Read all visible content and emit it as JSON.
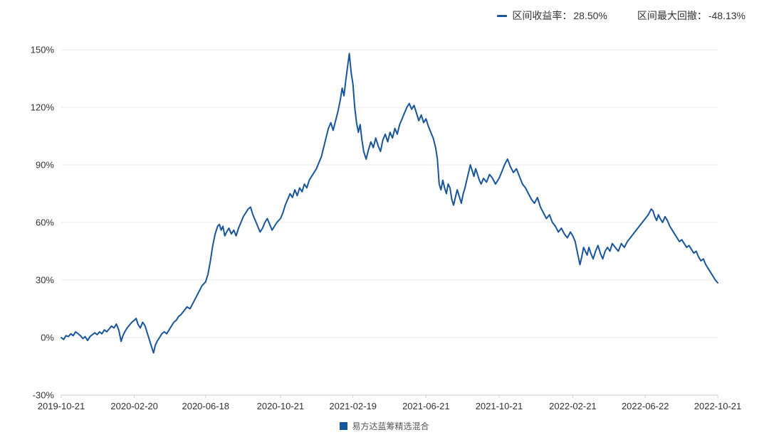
{
  "header": {
    "return_label": "区间收益率：",
    "return_value": "28.50%",
    "drawdown_label": "区间最大回撤：",
    "drawdown_value": "-48.13%"
  },
  "legend": {
    "series_name": "易方达蓝筹精选混合",
    "marker_color": "#17559c"
  },
  "colors": {
    "line": "#17559c",
    "grid": "#e9e9e9",
    "axis": "#cfcfcf",
    "text": "#333333"
  },
  "chart_data": {
    "type": "line",
    "title": "",
    "xlabel": "",
    "ylabel": "",
    "grid": "horizontal",
    "legend_position": "bottom",
    "x_unit": "days since 2019-10-21",
    "x_range": [
      0,
      1096
    ],
    "y_range": [
      -30,
      150
    ],
    "y_ticks": [
      -30,
      0,
      30,
      60,
      90,
      120,
      150
    ],
    "y_tick_labels": [
      "-30%",
      "0%",
      "30%",
      "60%",
      "90%",
      "120%",
      "150%"
    ],
    "x_ticks": [
      {
        "day": 0,
        "label": "2019-10-21"
      },
      {
        "day": 122,
        "label": "2020-02-20"
      },
      {
        "day": 241,
        "label": "2020-06-18"
      },
      {
        "day": 366,
        "label": "2020-10-21"
      },
      {
        "day": 487,
        "label": "2021-02-19"
      },
      {
        "day": 609,
        "label": "2021-06-21"
      },
      {
        "day": 731,
        "label": "2021-10-21"
      },
      {
        "day": 854,
        "label": "2022-02-21"
      },
      {
        "day": 975,
        "label": "2022-06-22"
      },
      {
        "day": 1096,
        "label": "2022-10-21"
      }
    ],
    "series": [
      {
        "name": "易方达蓝筹精选混合",
        "color": "#17559c",
        "points": [
          [
            0,
            0
          ],
          [
            4,
            -1
          ],
          [
            8,
            1
          ],
          [
            12,
            0.5
          ],
          [
            16,
            2
          ],
          [
            20,
            1
          ],
          [
            24,
            3
          ],
          [
            28,
            2
          ],
          [
            32,
            1
          ],
          [
            36,
            -0.5
          ],
          [
            40,
            0.5
          ],
          [
            44,
            -1.5
          ],
          [
            48,
            0.5
          ],
          [
            52,
            1.5
          ],
          [
            56,
            2.5
          ],
          [
            60,
            1.5
          ],
          [
            64,
            3
          ],
          [
            68,
            2
          ],
          [
            72,
            4
          ],
          [
            76,
            3
          ],
          [
            80,
            4.5
          ],
          [
            84,
            6
          ],
          [
            88,
            5
          ],
          [
            92,
            7
          ],
          [
            96,
            4
          ],
          [
            100,
            -2
          ],
          [
            103,
            1
          ],
          [
            106,
            3
          ],
          [
            110,
            5
          ],
          [
            114,
            6.5
          ],
          [
            118,
            8
          ],
          [
            122,
            9
          ],
          [
            125,
            10
          ],
          [
            128,
            7
          ],
          [
            132,
            5
          ],
          [
            136,
            8
          ],
          [
            140,
            6
          ],
          [
            144,
            2
          ],
          [
            148,
            -2
          ],
          [
            151,
            -5
          ],
          [
            154,
            -8
          ],
          [
            157,
            -4
          ],
          [
            160,
            -2
          ],
          [
            164,
            0
          ],
          [
            168,
            2
          ],
          [
            172,
            3
          ],
          [
            176,
            2
          ],
          [
            180,
            4
          ],
          [
            184,
            6
          ],
          [
            188,
            8
          ],
          [
            192,
            9
          ],
          [
            196,
            11
          ],
          [
            200,
            12
          ],
          [
            205,
            14
          ],
          [
            210,
            16
          ],
          [
            215,
            15
          ],
          [
            220,
            18
          ],
          [
            225,
            21
          ],
          [
            230,
            24
          ],
          [
            235,
            27
          ],
          [
            241,
            29
          ],
          [
            245,
            33
          ],
          [
            249,
            40
          ],
          [
            253,
            48
          ],
          [
            257,
            54
          ],
          [
            261,
            58
          ],
          [
            264,
            59
          ],
          [
            267,
            56
          ],
          [
            270,
            58
          ],
          [
            273,
            53
          ],
          [
            276,
            55
          ],
          [
            280,
            57
          ],
          [
            284,
            54
          ],
          [
            288,
            56
          ],
          [
            292,
            53
          ],
          [
            296,
            57
          ],
          [
            300,
            60
          ],
          [
            304,
            63
          ],
          [
            308,
            65
          ],
          [
            312,
            67
          ],
          [
            316,
            68
          ],
          [
            320,
            64
          ],
          [
            324,
            61
          ],
          [
            328,
            58
          ],
          [
            332,
            55
          ],
          [
            336,
            57
          ],
          [
            340,
            60
          ],
          [
            344,
            62
          ],
          [
            348,
            59
          ],
          [
            352,
            56
          ],
          [
            356,
            58
          ],
          [
            360,
            60
          ],
          [
            366,
            62
          ],
          [
            370,
            65
          ],
          [
            374,
            69
          ],
          [
            378,
            72
          ],
          [
            382,
            75
          ],
          [
            386,
            73
          ],
          [
            390,
            77
          ],
          [
            394,
            74
          ],
          [
            398,
            78
          ],
          [
            402,
            76
          ],
          [
            406,
            80
          ],
          [
            410,
            78
          ],
          [
            414,
            82
          ],
          [
            418,
            84
          ],
          [
            422,
            86
          ],
          [
            426,
            88
          ],
          [
            430,
            91
          ],
          [
            434,
            94
          ],
          [
            438,
            99
          ],
          [
            442,
            104
          ],
          [
            446,
            109
          ],
          [
            450,
            112
          ],
          [
            454,
            108
          ],
          [
            458,
            113
          ],
          [
            462,
            118
          ],
          [
            466,
            124
          ],
          [
            469,
            130
          ],
          [
            472,
            126
          ],
          [
            475,
            134
          ],
          [
            478,
            141
          ],
          [
            481,
            148
          ],
          [
            484,
            138
          ],
          [
            487,
            132
          ],
          [
            490,
            120
          ],
          [
            493,
            112
          ],
          [
            496,
            107
          ],
          [
            499,
            111
          ],
          [
            502,
            103
          ],
          [
            505,
            97
          ],
          [
            509,
            93
          ],
          [
            513,
            98
          ],
          [
            517,
            102
          ],
          [
            521,
            99
          ],
          [
            525,
            104
          ],
          [
            529,
            100
          ],
          [
            533,
            97
          ],
          [
            537,
            103
          ],
          [
            541,
            106
          ],
          [
            545,
            102
          ],
          [
            549,
            107
          ],
          [
            553,
            104
          ],
          [
            557,
            109
          ],
          [
            561,
            106
          ],
          [
            565,
            111
          ],
          [
            569,
            114
          ],
          [
            573,
            117
          ],
          [
            577,
            120
          ],
          [
            581,
            122
          ],
          [
            585,
            119
          ],
          [
            589,
            121
          ],
          [
            593,
            117
          ],
          [
            597,
            113
          ],
          [
            601,
            116
          ],
          [
            605,
            112
          ],
          [
            609,
            114
          ],
          [
            613,
            110
          ],
          [
            617,
            107
          ],
          [
            621,
            104
          ],
          [
            625,
            99
          ],
          [
            628,
            93
          ],
          [
            631,
            80
          ],
          [
            634,
            77
          ],
          [
            637,
            82
          ],
          [
            640,
            78
          ],
          [
            643,
            75
          ],
          [
            646,
            80
          ],
          [
            649,
            78
          ],
          [
            652,
            72
          ],
          [
            655,
            69
          ],
          [
            658,
            73
          ],
          [
            661,
            77
          ],
          [
            664,
            74
          ],
          [
            668,
            70
          ],
          [
            671,
            75
          ],
          [
            674,
            78
          ],
          [
            677,
            82
          ],
          [
            680,
            86
          ],
          [
            683,
            90
          ],
          [
            686,
            87
          ],
          [
            689,
            84
          ],
          [
            692,
            88
          ],
          [
            695,
            85
          ],
          [
            698,
            82
          ],
          [
            701,
            80
          ],
          [
            705,
            83
          ],
          [
            710,
            81
          ],
          [
            715,
            85
          ],
          [
            720,
            83
          ],
          [
            725,
            80
          ],
          [
            731,
            83
          ],
          [
            735,
            86
          ],
          [
            740,
            90
          ],
          [
            745,
            93
          ],
          [
            750,
            89
          ],
          [
            755,
            86
          ],
          [
            760,
            88
          ],
          [
            765,
            84
          ],
          [
            770,
            80
          ],
          [
            775,
            78
          ],
          [
            780,
            75
          ],
          [
            785,
            72
          ],
          [
            790,
            70
          ],
          [
            795,
            73
          ],
          [
            800,
            68
          ],
          [
            805,
            65
          ],
          [
            810,
            62
          ],
          [
            815,
            64
          ],
          [
            820,
            60
          ],
          [
            825,
            58
          ],
          [
            830,
            55
          ],
          [
            835,
            57
          ],
          [
            840,
            54
          ],
          [
            845,
            52
          ],
          [
            850,
            55
          ],
          [
            854,
            53
          ],
          [
            858,
            50
          ],
          [
            862,
            44
          ],
          [
            866,
            38
          ],
          [
            869,
            42
          ],
          [
            872,
            47
          ],
          [
            875,
            45
          ],
          [
            878,
            43
          ],
          [
            881,
            47
          ],
          [
            884,
            44
          ],
          [
            888,
            41
          ],
          [
            892,
            45
          ],
          [
            896,
            48
          ],
          [
            900,
            44
          ],
          [
            904,
            41
          ],
          [
            908,
            45
          ],
          [
            912,
            47
          ],
          [
            916,
            45
          ],
          [
            920,
            49
          ],
          [
            925,
            47
          ],
          [
            930,
            45
          ],
          [
            935,
            49
          ],
          [
            940,
            47
          ],
          [
            945,
            50
          ],
          [
            950,
            52
          ],
          [
            955,
            54
          ],
          [
            960,
            56
          ],
          [
            965,
            58
          ],
          [
            970,
            60
          ],
          [
            975,
            62
          ],
          [
            980,
            64
          ],
          [
            985,
            67
          ],
          [
            988,
            66
          ],
          [
            991,
            63
          ],
          [
            994,
            61
          ],
          [
            997,
            64
          ],
          [
            1000,
            62
          ],
          [
            1004,
            60
          ],
          [
            1008,
            63
          ],
          [
            1012,
            61
          ],
          [
            1016,
            58
          ],
          [
            1020,
            56
          ],
          [
            1024,
            54
          ],
          [
            1028,
            52
          ],
          [
            1032,
            50
          ],
          [
            1036,
            51
          ],
          [
            1040,
            49
          ],
          [
            1044,
            47
          ],
          [
            1048,
            48
          ],
          [
            1052,
            46
          ],
          [
            1056,
            44
          ],
          [
            1060,
            45
          ],
          [
            1064,
            42
          ],
          [
            1068,
            40
          ],
          [
            1072,
            41
          ],
          [
            1076,
            38
          ],
          [
            1080,
            36
          ],
          [
            1084,
            34
          ],
          [
            1088,
            32
          ],
          [
            1092,
            30
          ],
          [
            1096,
            28.5
          ]
        ]
      }
    ]
  }
}
